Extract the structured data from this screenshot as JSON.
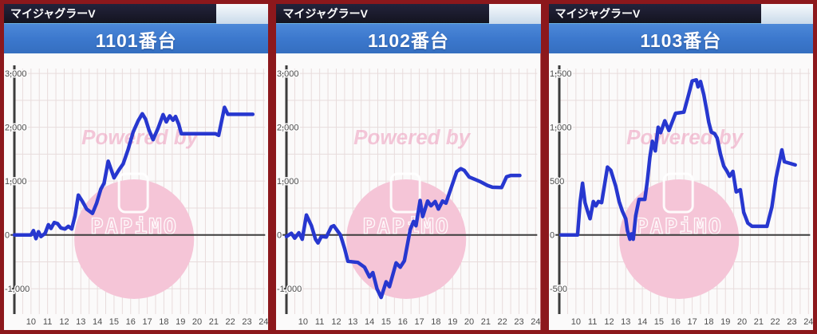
{
  "watermark": {
    "powered_by": "Powered by",
    "logo_text": "PAPiMO"
  },
  "colors": {
    "frame": "#8c181c",
    "header_bg": "#17171f",
    "number_bar_blue": "#3b77cc",
    "plot_bg": "#fbfafa",
    "grid": "#e8dcdc",
    "axis": "#3c3c3c",
    "tick_text": "#4d4d4d",
    "line_blue": "#2737cf",
    "watermark_pink": "#ee9cbd",
    "logo_circle_pink": "#f5c5d7"
  },
  "panels": [
    {
      "model": "マイジャグラーV",
      "number": "1101番台"
    },
    {
      "model": "マイジャグラーV",
      "number": "1102番台"
    },
    {
      "model": "マイジャグラーV",
      "number": "1103番台"
    }
  ],
  "chart_data": [
    {
      "type": "line",
      "title": "1101番台",
      "xlim": [
        9,
        24.6
      ],
      "ylim": [
        -1470,
        3090
      ],
      "x_ticks": [
        10,
        11,
        12,
        13,
        14,
        15,
        16,
        17,
        18,
        19,
        20,
        21,
        22,
        23,
        24
      ],
      "y_ticks": [
        3000,
        2000,
        1000,
        0,
        -1000
      ],
      "y_tick_labels": [
        "3,000",
        "2,000",
        "1,000",
        "0",
        "-1,000"
      ],
      "y_grid": 500,
      "x_grid": 0.5,
      "grid": true,
      "x": [
        9.0,
        10.0,
        10.15,
        10.3,
        10.45,
        10.6,
        10.85,
        11.05,
        11.2,
        11.4,
        11.6,
        11.8,
        12.05,
        12.25,
        12.45,
        12.65,
        12.85,
        13.1,
        13.35,
        13.7,
        13.95,
        14.2,
        14.4,
        14.65,
        15.0,
        15.3,
        15.55,
        15.85,
        16.15,
        16.45,
        16.7,
        16.9,
        17.1,
        17.35,
        17.65,
        17.95,
        18.15,
        18.35,
        18.55,
        18.7,
        18.9,
        19.05,
        21.1,
        21.3,
        21.65,
        21.85,
        23.35
      ],
      "y": [
        0,
        0,
        80,
        -70,
        60,
        -30,
        30,
        190,
        120,
        230,
        210,
        130,
        110,
        160,
        110,
        350,
        740,
        620,
        480,
        400,
        590,
        850,
        960,
        1370,
        1060,
        1210,
        1320,
        1590,
        1910,
        2120,
        2250,
        2150,
        1950,
        1770,
        1980,
        2235,
        2100,
        2210,
        2130,
        2200,
        2050,
        1880,
        1880,
        1850,
        2370,
        2240,
        2240
      ]
    },
    {
      "type": "line",
      "title": "1102番台",
      "xlim": [
        9,
        24.6
      ],
      "ylim": [
        -1470,
        3090
      ],
      "x_ticks": [
        10,
        11,
        12,
        13,
        14,
        15,
        16,
        17,
        18,
        19,
        20,
        21,
        22,
        23,
        24
      ],
      "y_ticks": [
        3000,
        2000,
        1000,
        0,
        -1000
      ],
      "y_tick_labels": [
        "3,000",
        "2,000",
        "1,000",
        "0",
        "-1,000"
      ],
      "y_grid": 500,
      "x_grid": 0.5,
      "grid": true,
      "x": [
        9.0,
        9.3,
        9.5,
        9.75,
        9.95,
        10.2,
        10.5,
        10.75,
        10.9,
        11.1,
        11.4,
        11.7,
        11.85,
        12.25,
        12.5,
        12.7,
        13.3,
        13.7,
        14.0,
        14.2,
        14.45,
        14.7,
        15.0,
        15.2,
        15.6,
        15.85,
        16.1,
        16.45,
        16.65,
        16.8,
        17.05,
        17.2,
        17.5,
        17.7,
        17.95,
        18.15,
        18.4,
        18.6,
        19.0,
        19.25,
        19.5,
        19.7,
        20.0,
        20.35,
        20.7,
        21.1,
        21.4,
        21.95,
        22.25,
        22.5,
        23.05
      ],
      "y": [
        -30,
        30,
        -60,
        40,
        -80,
        370,
        175,
        -80,
        -150,
        -30,
        -40,
        150,
        170,
        0,
        -250,
        -490,
        -510,
        -600,
        -780,
        -700,
        -1000,
        -1160,
        -870,
        -960,
        -520,
        -600,
        -480,
        100,
        250,
        170,
        640,
        340,
        630,
        540,
        620,
        480,
        630,
        590,
        950,
        1175,
        1230,
        1200,
        1075,
        1030,
        985,
        920,
        885,
        880,
        1080,
        1105,
        1105
      ]
    },
    {
      "type": "line",
      "title": "1103番台",
      "xlim": [
        9,
        24.6
      ],
      "ylim": [
        -735,
        1545
      ],
      "x_ticks": [
        10,
        11,
        12,
        13,
        14,
        15,
        16,
        17,
        18,
        19,
        20,
        21,
        22,
        23,
        24
      ],
      "y_ticks": [
        1500,
        1000,
        500,
        0,
        -500
      ],
      "y_tick_labels": [
        "1,500",
        "1,000",
        "500",
        "0",
        "-500"
      ],
      "y_grid": 250,
      "x_grid": 0.5,
      "grid": true,
      "x": [
        9.1,
        10.1,
        10.25,
        10.4,
        10.55,
        10.7,
        10.85,
        11.05,
        11.2,
        11.35,
        11.55,
        11.9,
        12.1,
        12.4,
        12.6,
        12.8,
        13.0,
        13.1,
        13.25,
        13.35,
        13.45,
        13.6,
        13.8,
        14.15,
        14.3,
        14.45,
        14.6,
        14.78,
        14.95,
        15.1,
        15.35,
        15.6,
        16.0,
        16.5,
        16.8,
        17.0,
        17.25,
        17.35,
        17.5,
        17.7,
        17.85,
        18.0,
        18.15,
        18.35,
        18.5,
        18.7,
        18.9,
        19.1,
        19.25,
        19.45,
        19.65,
        19.9,
        20.1,
        20.35,
        20.6,
        21.5,
        21.8,
        22.05,
        22.4,
        22.55,
        23.2
      ],
      "y": [
        0,
        0,
        300,
        480,
        300,
        220,
        150,
        310,
        270,
        310,
        300,
        630,
        600,
        450,
        310,
        220,
        150,
        40,
        -40,
        10,
        -40,
        180,
        330,
        330,
        500,
        720,
        870,
        780,
        1000,
        950,
        1060,
        970,
        1130,
        1140,
        1310,
        1430,
        1440,
        1375,
        1425,
        1300,
        1175,
        1045,
        955,
        940,
        900,
        750,
        640,
        590,
        545,
        590,
        400,
        420,
        210,
        110,
        80,
        80,
        260,
        530,
        790,
        680,
        650
      ]
    }
  ]
}
